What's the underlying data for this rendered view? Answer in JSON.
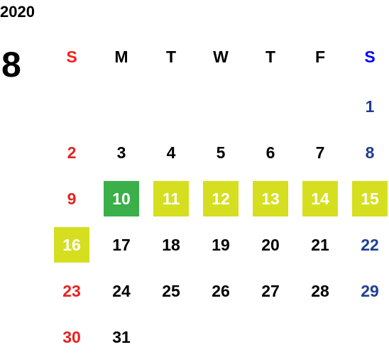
{
  "year": "2020",
  "month": "8",
  "weekdays": [
    {
      "label": "S",
      "color": "#ff1a1a"
    },
    {
      "label": "M",
      "color": "#000000"
    },
    {
      "label": "T",
      "color": "#000000"
    },
    {
      "label": "W",
      "color": "#000000"
    },
    {
      "label": "T",
      "color": "#000000"
    },
    {
      "label": "F",
      "color": "#000000"
    },
    {
      "label": "S",
      "color": "#0000ff"
    }
  ],
  "day_colors": [
    "#e52222",
    "#000000",
    "#000000",
    "#000000",
    "#000000",
    "#000000",
    "#1f3e94"
  ],
  "highlight_text_color": "#ffffff",
  "weeks": [
    [
      null,
      null,
      null,
      null,
      null,
      null,
      {
        "day": 1
      }
    ],
    [
      {
        "day": 2
      },
      {
        "day": 3
      },
      {
        "day": 4
      },
      {
        "day": 5
      },
      {
        "day": 6
      },
      {
        "day": 7
      },
      {
        "day": 8
      }
    ],
    [
      {
        "day": 9
      },
      {
        "day": 10,
        "bg": "#3bb04a"
      },
      {
        "day": 11,
        "bg": "#d5df1f"
      },
      {
        "day": 12,
        "bg": "#d5df1f"
      },
      {
        "day": 13,
        "bg": "#d5df1f"
      },
      {
        "day": 14,
        "bg": "#d5df1f"
      },
      {
        "day": 15,
        "bg": "#d5df1f"
      }
    ],
    [
      {
        "day": 16,
        "bg": "#d5df1f"
      },
      {
        "day": 17
      },
      {
        "day": 18
      },
      {
        "day": 19
      },
      {
        "day": 20
      },
      {
        "day": 21
      },
      {
        "day": 22
      }
    ],
    [
      {
        "day": 23
      },
      {
        "day": 24
      },
      {
        "day": 25
      },
      {
        "day": 26
      },
      {
        "day": 27
      },
      {
        "day": 28
      },
      {
        "day": 29
      }
    ],
    [
      {
        "day": 30
      },
      {
        "day": 31
      },
      null,
      null,
      null,
      null,
      null
    ]
  ]
}
